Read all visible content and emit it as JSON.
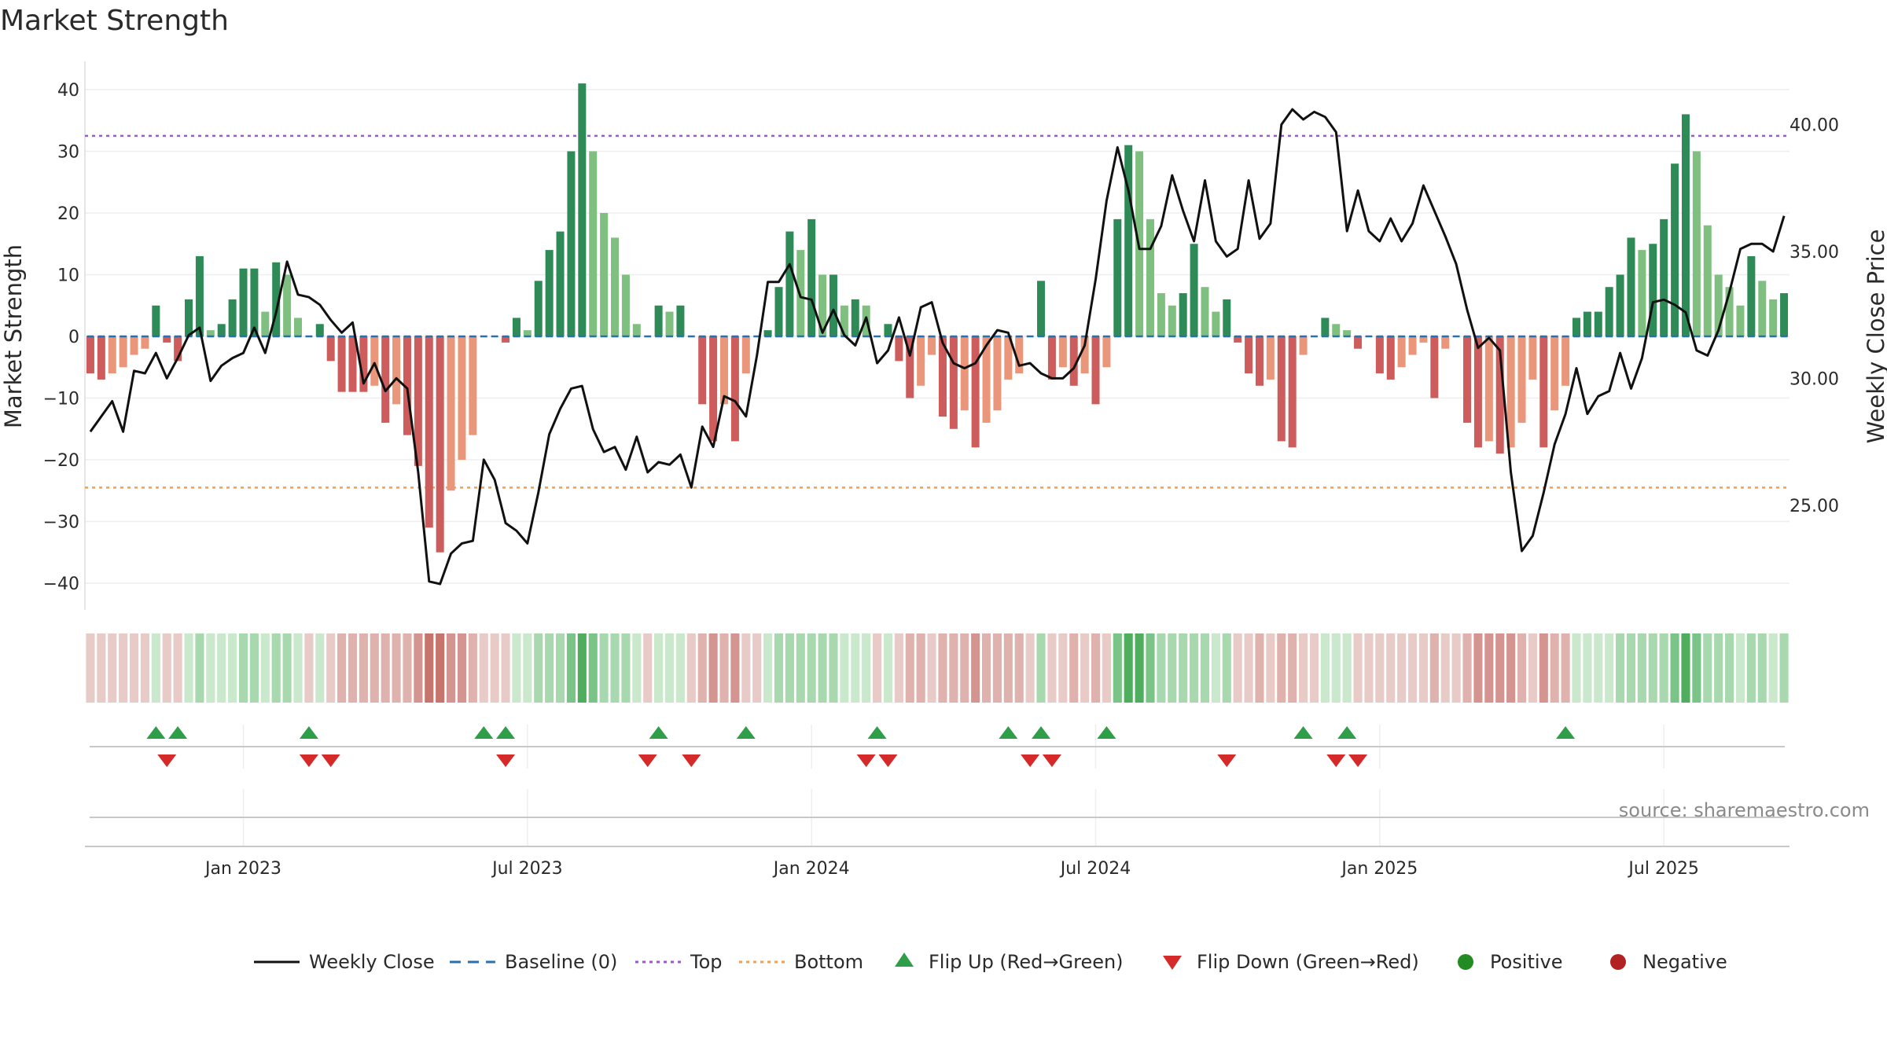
{
  "chart_data": {
    "type": "bar",
    "title": "Market Strength",
    "ylabel_left": "Market Strength",
    "ylabel_right": "Weekly Close Price",
    "source": "source: sharemaestro.com",
    "ylim_left": [
      -44,
      44
    ],
    "ylim_right": [
      21,
      42
    ],
    "y_ticks_left": [
      "40",
      "30",
      "20",
      "10",
      "0",
      "−10",
      "−20",
      "−30",
      "−40"
    ],
    "y_ticks_left_values": [
      40,
      30,
      20,
      10,
      0,
      -10,
      -20,
      -30,
      -40
    ],
    "y_ticks_right": [
      "40.00",
      "35.00",
      "30.00",
      "25.00"
    ],
    "y_ticks_right_values": [
      40,
      35,
      30,
      25
    ],
    "x_ticks": [
      "Jan 2023",
      "Jul 2023",
      "Jan 2024",
      "Jul 2024",
      "Jan 2025",
      "Jul 2025"
    ],
    "x_tick_weeks": [
      14.5,
      40.5,
      66.5,
      92.5,
      118.5,
      144.5
    ],
    "reference_lines": {
      "top": 32.5,
      "bottom": -24.5,
      "baseline": 0
    },
    "strength": [
      -6,
      -7,
      -6,
      -5,
      -3,
      -2,
      5,
      -1,
      -4,
      6,
      13,
      1,
      2,
      6,
      11,
      11,
      4,
      12,
      10,
      3,
      0,
      2,
      -4,
      -9,
      -9,
      -9,
      -8,
      -14,
      -11,
      -16,
      -21,
      -31,
      -35,
      -25,
      -20,
      -16,
      0,
      0,
      -1,
      3,
      1,
      9,
      14,
      17,
      30,
      41,
      30,
      20,
      16,
      10,
      2,
      0,
      5,
      4,
      5,
      0,
      -11,
      -17,
      -11,
      -17,
      -6,
      0,
      1,
      8,
      17,
      14,
      19,
      10,
      10,
      5,
      6,
      5,
      0,
      2,
      -4,
      -10,
      -8,
      -3,
      -13,
      -15,
      -12,
      -18,
      -14,
      -12,
      -7,
      -6,
      0,
      9,
      -7,
      -5,
      -8,
      -6,
      -11,
      -5,
      19,
      31,
      30,
      19,
      7,
      5,
      7,
      15,
      8,
      4,
      6,
      -1,
      -6,
      -8,
      -7,
      -17,
      -18,
      -3,
      0,
      3,
      2,
      1,
      -2,
      0,
      -6,
      -7,
      -5,
      -3,
      -1,
      -10,
      -2,
      0,
      -14,
      -18,
      -17,
      -19,
      -18,
      -14,
      -7,
      -18,
      -12,
      -8,
      3,
      4,
      4,
      8,
      10,
      16,
      14,
      15,
      19,
      28,
      36,
      30,
      18,
      10,
      8,
      5,
      13,
      9,
      6,
      7
    ],
    "weekly_close": [
      27.9,
      28.5,
      29.1,
      27.9,
      30.3,
      30.2,
      31.0,
      30.0,
      30.8,
      31.7,
      32.0,
      29.9,
      30.5,
      30.8,
      31.0,
      32.0,
      31.0,
      32.6,
      34.6,
      33.3,
      33.2,
      32.9,
      32.3,
      31.8,
      32.2,
      29.8,
      30.6,
      29.5,
      30.0,
      29.6,
      26.3,
      22.0,
      21.9,
      23.1,
      23.5,
      23.6,
      26.8,
      26.0,
      24.3,
      24.0,
      23.5,
      25.5,
      27.8,
      28.8,
      29.6,
      29.7,
      28.0,
      27.1,
      27.3,
      26.4,
      27.7,
      26.3,
      26.7,
      26.6,
      27.0,
      25.7,
      28.1,
      27.3,
      29.3,
      29.1,
      28.5,
      30.9,
      33.8,
      33.8,
      34.5,
      33.2,
      33.1,
      31.8,
      32.7,
      31.7,
      31.3,
      32.4,
      30.6,
      31.1,
      32.4,
      30.9,
      32.8,
      33.0,
      31.4,
      30.6,
      30.4,
      30.6,
      31.3,
      31.9,
      31.8,
      30.5,
      30.6,
      30.2,
      30.0,
      30.0,
      30.4,
      31.3,
      33.9,
      37.0,
      39.1,
      37.4,
      35.1,
      35.1,
      36.0,
      38.0,
      36.6,
      35.4,
      37.8,
      35.4,
      34.8,
      35.1,
      37.8,
      35.5,
      36.1,
      40.0,
      40.6,
      40.2,
      40.5,
      40.3,
      39.7,
      35.8,
      37.4,
      35.8,
      35.4,
      36.3,
      35.4,
      36.1,
      37.6,
      36.6,
      35.6,
      34.5,
      32.7,
      31.2,
      31.6,
      31.1,
      26.3,
      23.2,
      23.8,
      25.5,
      27.4,
      28.6,
      30.4,
      28.6,
      29.3,
      29.5,
      31.0,
      29.6,
      30.8,
      33.0,
      33.1,
      32.9,
      32.6,
      31.1,
      30.9,
      31.9,
      33.4,
      35.1,
      35.3,
      35.3,
      35.0,
      36.4
    ]
  },
  "shade_row": {
    "colors": [
      "#e8cbc7",
      "#e8cbc7",
      "#e8cbc7",
      "#e8cbc7",
      "#e8cbc7",
      "#e8cbc7",
      "#c9e8cc",
      "#e8cbc7",
      "#e8cbc7",
      "#c9e8cc",
      "#a8d9ae",
      "#c9e8cc",
      "#c9e8cc",
      "#c9e8cc",
      "#a8d9ae",
      "#a8d9ae",
      "#c9e8cc",
      "#a8d9ae",
      "#a8d9ae",
      "#c9e8cc",
      "#e8cbc7",
      "#c9e8cc",
      "#e8cbc7",
      "#dfb2ad",
      "#dfb2ad",
      "#dfb2ad",
      "#dfb2ad",
      "#dfb2ad",
      "#dfb2ad",
      "#dfb2ad",
      "#d49590",
      "#c7746c",
      "#c7746c",
      "#d49590",
      "#d49590",
      "#dfb2ad",
      "#e8cbc7",
      "#e8cbc7",
      "#e8cbc7",
      "#c9e8cc",
      "#c9e8cc",
      "#a8d9ae",
      "#a8d9ae",
      "#a8d9ae",
      "#79c486",
      "#4fae5e",
      "#79c486",
      "#a8d9ae",
      "#a8d9ae",
      "#a8d9ae",
      "#c9e8cc",
      "#e8cbc7",
      "#c9e8cc",
      "#c9e8cc",
      "#c9e8cc",
      "#e8cbc7",
      "#dfb2ad",
      "#d49590",
      "#dfb2ad",
      "#d49590",
      "#e8cbc7",
      "#e8cbc7",
      "#c9e8cc",
      "#a8d9ae",
      "#a8d9ae",
      "#a8d9ae",
      "#a8d9ae",
      "#a8d9ae",
      "#a8d9ae",
      "#c9e8cc",
      "#c9e8cc",
      "#c9e8cc",
      "#e8cbc7",
      "#c9e8cc",
      "#e8cbc7",
      "#dfb2ad",
      "#dfb2ad",
      "#e8cbc7",
      "#dfb2ad",
      "#dfb2ad",
      "#dfb2ad",
      "#d49590",
      "#dfb2ad",
      "#dfb2ad",
      "#dfb2ad",
      "#dfb2ad",
      "#e8cbc7",
      "#a8d9ae",
      "#e8cbc7",
      "#e8cbc7",
      "#dfb2ad",
      "#e8cbc7",
      "#dfb2ad",
      "#e8cbc7",
      "#79c486",
      "#4fae5e",
      "#4fae5e",
      "#79c486",
      "#a8d9ae",
      "#a8d9ae",
      "#a8d9ae",
      "#a8d9ae",
      "#a8d9ae",
      "#c9e8cc",
      "#a8d9ae",
      "#e8cbc7",
      "#e8cbc7",
      "#dfb2ad",
      "#e8cbc7",
      "#dfb2ad",
      "#dfb2ad",
      "#e8cbc7",
      "#e8cbc7",
      "#c9e8cc",
      "#c9e8cc",
      "#c9e8cc",
      "#e8cbc7",
      "#e8cbc7",
      "#e8cbc7",
      "#e8cbc7",
      "#e8cbc7",
      "#e8cbc7",
      "#e8cbc7",
      "#dfb2ad",
      "#e8cbc7",
      "#e8cbc7",
      "#dfb2ad",
      "#d49590",
      "#d49590",
      "#d49590",
      "#d49590",
      "#dfb2ad",
      "#e8cbc7",
      "#d49590",
      "#dfb2ad",
      "#dfb2ad",
      "#c9e8cc",
      "#c9e8cc",
      "#c9e8cc",
      "#c9e8cc",
      "#a8d9ae",
      "#a8d9ae",
      "#a8d9ae",
      "#a8d9ae",
      "#a8d9ae",
      "#79c486",
      "#4fae5e",
      "#79c486",
      "#a8d9ae",
      "#a8d9ae",
      "#a8d9ae",
      "#c9e8cc",
      "#a8d9ae",
      "#a8d9ae",
      "#c9e8cc",
      "#a8d9ae"
    ]
  },
  "flips": {
    "up_weeks": [
      6.5,
      8.5,
      20.5,
      36.5,
      38.5,
      52.5,
      60.5,
      72.5,
      84.5,
      87.5,
      93.5,
      111.5,
      115.5,
      135.5
    ],
    "down_weeks": [
      7.5,
      20.5,
      22.5,
      38.5,
      51.5,
      55.5,
      71.5,
      73.5,
      86.5,
      88.5,
      104.5,
      114.5,
      116.5
    ]
  },
  "legend": [
    {
      "label": "Weekly Close",
      "kind": "line",
      "color": "#111111"
    },
    {
      "label": "Baseline (0)",
      "kind": "dash",
      "color": "#2a6fb0"
    },
    {
      "label": "Top",
      "kind": "dot",
      "color": "#9b59d0"
    },
    {
      "label": "Bottom",
      "kind": "dot",
      "color": "#f0a050"
    },
    {
      "label": "Flip Up (Red→Green)",
      "kind": "tri-up",
      "color": "#2e9e48"
    },
    {
      "label": "Flip Down (Green→Red)",
      "kind": "tri-down",
      "color": "#d42a2a"
    },
    {
      "label": "Positive",
      "kind": "dot-marker",
      "color": "#228b22"
    },
    {
      "label": "Negative",
      "kind": "dot-marker",
      "color": "#b22222"
    }
  ],
  "colors": {
    "bar_pos_strong": "#2e8b57",
    "bar_pos_light": "#7fbf7f",
    "bar_neg_strong": "#cd5c5c",
    "bar_neg_light": "#e9967a",
    "price_line": "#111111"
  }
}
